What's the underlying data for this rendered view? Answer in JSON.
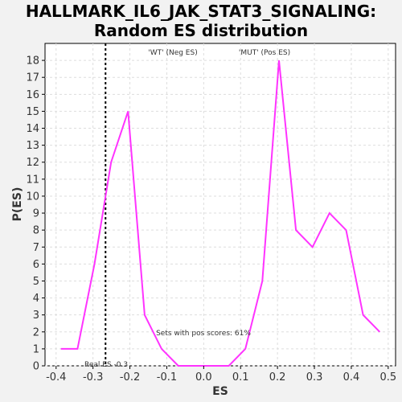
{
  "chart_data": {
    "type": "line",
    "title_line1": "HALLMARK_IL6_JAK_STAT3_SIGNALING:",
    "title_line2": "Random ES distribution",
    "xlabel": "ES",
    "ylabel": "P(ES)",
    "xlim": [
      -0.43,
      0.52
    ],
    "ylim": [
      0,
      19
    ],
    "xticks": [
      "-0.4",
      "-0.3",
      "-0.2",
      "-0.1",
      "0.0",
      "0.1",
      "0.2",
      "0.3",
      "0.4",
      "0.5"
    ],
    "xtick_values": [
      -0.4,
      -0.3,
      -0.2,
      -0.1,
      0.0,
      0.1,
      0.2,
      0.3,
      0.4,
      0.5
    ],
    "yticks": [
      0,
      1,
      2,
      3,
      4,
      5,
      6,
      7,
      8,
      9,
      10,
      11,
      12,
      13,
      14,
      15,
      16,
      17,
      18
    ],
    "grid": true,
    "series": [
      {
        "color": "#ff33ff",
        "x": [
          -0.387,
          -0.342,
          -0.296,
          -0.251,
          -0.205,
          -0.16,
          -0.114,
          -0.069,
          -0.023,
          0.022,
          0.068,
          0.113,
          0.159,
          0.204,
          0.25,
          0.295,
          0.341,
          0.386,
          0.432,
          0.477
        ],
        "y": [
          1,
          1,
          6,
          12,
          15,
          3,
          1,
          0,
          0,
          0,
          0,
          1,
          5,
          18,
          8,
          7,
          9,
          8,
          3,
          2
        ]
      }
    ],
    "real_es": {
      "x": -0.266,
      "label": "Real ES -0.3",
      "color": "#000000"
    },
    "legend_neg": {
      "text": "'WT' (Neg ES)",
      "color": "#3333ff"
    },
    "legend_pos": {
      "text": "'MUT' (Pos ES)",
      "color": "#ff3333"
    },
    "annotation": "Sets with pos scores: 61%"
  }
}
